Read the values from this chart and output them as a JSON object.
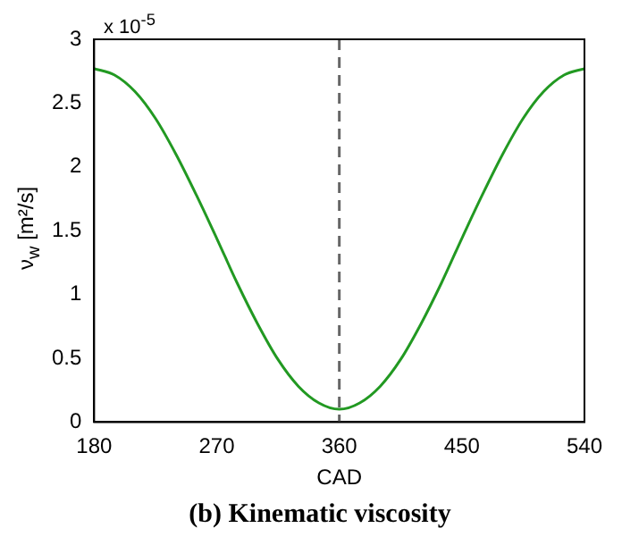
{
  "chart_data": {
    "type": "line",
    "title": "(b) Kinematic viscosity",
    "xlabel": "CAD",
    "ylabel": "ν$_{w}$ [m²/s]",
    "annotations": [
      "x 10$^{-5}$"
    ],
    "x": [
      180,
      195,
      210,
      225,
      240,
      255,
      270,
      285,
      300,
      315,
      330,
      345,
      360,
      375,
      390,
      405,
      420,
      435,
      450,
      465,
      480,
      495,
      510,
      525,
      540
    ],
    "series": [
      {
        "color": "#229922",
        "values": [
          2.77,
          2.72,
          2.59,
          2.38,
          2.1,
          1.78,
          1.44,
          1.09,
          0.77,
          0.49,
          0.28,
          0.15,
          0.1,
          0.15,
          0.28,
          0.49,
          0.77,
          1.09,
          1.44,
          1.78,
          2.1,
          2.38,
          2.59,
          2.72,
          2.77
        ]
      }
    ],
    "xlim": [
      180,
      540
    ],
    "xticks": [
      180,
      270,
      360,
      450,
      540
    ],
    "ylim": [
      0,
      3
    ],
    "yticks": [
      0,
      0.5,
      1,
      1.5,
      2,
      2.5,
      3
    ],
    "ref_lines": [
      {
        "axis": "x",
        "value": 360,
        "color": "#666666",
        "line_style": "dashed"
      }
    ],
    "grid": false,
    "legend": false,
    "marker": "none",
    "line_style": "solid"
  }
}
